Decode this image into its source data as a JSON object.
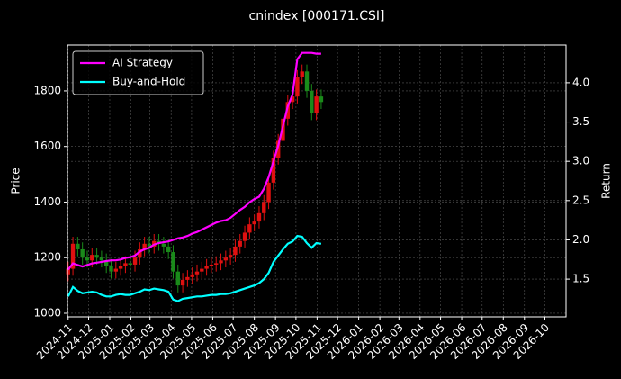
{
  "chart_data": {
    "type": "candlestick",
    "title": "cnindex [000171.CSI]",
    "ylabel": "Price",
    "y2label": "Return",
    "x": [
      "2024-11-01",
      "2024-11-08",
      "2024-11-15",
      "2024-11-22",
      "2024-11-29",
      "2024-12-06",
      "2024-12-13",
      "2024-12-20",
      "2024-12-27",
      "2025-01-03",
      "2025-01-10",
      "2025-01-17",
      "2025-01-24",
      "2025-01-31",
      "2025-02-07",
      "2025-02-14",
      "2025-02-21",
      "2025-02-28",
      "2025-03-07",
      "2025-03-14",
      "2025-03-21",
      "2025-03-28",
      "2025-04-04",
      "2025-04-11",
      "2025-04-18",
      "2025-04-25",
      "2025-05-02",
      "2025-05-09",
      "2025-05-16",
      "2025-05-23",
      "2025-05-30",
      "2025-06-06",
      "2025-06-13",
      "2025-06-20",
      "2025-06-27",
      "2025-07-04",
      "2025-07-11",
      "2025-07-18",
      "2025-07-25",
      "2025-08-01",
      "2025-08-08",
      "2025-08-15",
      "2025-08-22",
      "2025-08-29",
      "2025-09-05",
      "2025-09-12",
      "2025-09-19",
      "2025-09-26",
      "2025-10-03",
      "2025-10-10",
      "2025-10-17",
      "2025-10-24",
      "2025-10-31",
      "2025-11-07"
    ],
    "open": [
      1140,
      1160,
      1250,
      1230,
      1200,
      1190,
      1210,
      1200,
      1190,
      1170,
      1150,
      1160,
      1170,
      1180,
      1175,
      1200,
      1230,
      1250,
      1240,
      1260,
      1250,
      1240,
      1220,
      1150,
      1100,
      1120,
      1130,
      1140,
      1150,
      1160,
      1170,
      1175,
      1180,
      1190,
      1200,
      1210,
      1240,
      1260,
      1290,
      1320,
      1330,
      1360,
      1400,
      1470,
      1560,
      1620,
      1700,
      1760,
      1780,
      1850,
      1870,
      1800,
      1720,
      1780
    ],
    "high": [
      1185,
      1275,
      1275,
      1255,
      1225,
      1235,
      1235,
      1225,
      1215,
      1195,
      1185,
      1195,
      1205,
      1205,
      1225,
      1255,
      1275,
      1275,
      1285,
      1285,
      1275,
      1265,
      1245,
      1175,
      1145,
      1155,
      1165,
      1175,
      1185,
      1195,
      1200,
      1205,
      1215,
      1225,
      1235,
      1265,
      1285,
      1315,
      1345,
      1355,
      1385,
      1425,
      1495,
      1585,
      1645,
      1725,
      1785,
      1805,
      1875,
      1895,
      1895,
      1825,
      1805,
      1805
    ],
    "low": [
      1115,
      1135,
      1205,
      1175,
      1165,
      1165,
      1175,
      1165,
      1145,
      1125,
      1125,
      1135,
      1145,
      1150,
      1150,
      1175,
      1205,
      1215,
      1215,
      1225,
      1215,
      1195,
      1125,
      1075,
      1075,
      1095,
      1105,
      1115,
      1125,
      1135,
      1145,
      1150,
      1155,
      1165,
      1175,
      1185,
      1215,
      1235,
      1265,
      1295,
      1305,
      1335,
      1375,
      1445,
      1535,
      1595,
      1675,
      1735,
      1755,
      1825,
      1775,
      1695,
      1695,
      1735
    ],
    "close": [
      1160,
      1250,
      1230,
      1200,
      1190,
      1210,
      1200,
      1190,
      1170,
      1150,
      1160,
      1170,
      1180,
      1175,
      1200,
      1230,
      1250,
      1240,
      1260,
      1250,
      1240,
      1220,
      1150,
      1100,
      1120,
      1130,
      1140,
      1150,
      1160,
      1170,
      1175,
      1180,
      1190,
      1200,
      1210,
      1240,
      1260,
      1290,
      1320,
      1330,
      1360,
      1400,
      1470,
      1560,
      1620,
      1700,
      1760,
      1780,
      1850,
      1870,
      1800,
      1720,
      1780,
      1760
    ],
    "up_color": "#e01010",
    "down_color": "#1a8a1a",
    "series": [
      {
        "name": "AI Strategy",
        "color": "#ff00ff",
        "axis": "y2",
        "values": [
          1.62,
          1.7,
          1.68,
          1.66,
          1.68,
          1.7,
          1.71,
          1.72,
          1.73,
          1.74,
          1.74,
          1.75,
          1.77,
          1.78,
          1.8,
          1.85,
          1.88,
          1.9,
          1.94,
          1.96,
          1.97,
          1.98,
          2.0,
          2.02,
          2.03,
          2.05,
          2.08,
          2.1,
          2.13,
          2.16,
          2.19,
          2.22,
          2.24,
          2.25,
          2.28,
          2.33,
          2.38,
          2.42,
          2.48,
          2.52,
          2.55,
          2.65,
          2.8,
          3.0,
          3.2,
          3.45,
          3.7,
          3.85,
          4.3,
          4.38,
          4.38,
          4.38,
          4.37,
          4.37
        ]
      },
      {
        "name": "Buy-and-Hold",
        "color": "#00ffff",
        "axis": "y2",
        "values": [
          1.28,
          1.4,
          1.35,
          1.32,
          1.33,
          1.34,
          1.33,
          1.3,
          1.28,
          1.28,
          1.3,
          1.31,
          1.3,
          1.3,
          1.32,
          1.34,
          1.37,
          1.36,
          1.38,
          1.37,
          1.36,
          1.34,
          1.24,
          1.22,
          1.25,
          1.26,
          1.27,
          1.28,
          1.28,
          1.29,
          1.3,
          1.3,
          1.31,
          1.31,
          1.32,
          1.34,
          1.36,
          1.38,
          1.4,
          1.42,
          1.45,
          1.5,
          1.58,
          1.72,
          1.8,
          1.88,
          1.95,
          1.98,
          2.05,
          2.04,
          1.96,
          1.9,
          1.96,
          1.95
        ]
      }
    ],
    "xlim": [
      "2024-10-31",
      "2026-11-01"
    ],
    "xticks": [
      "2024-11",
      "2024-12",
      "2025-01",
      "2025-02",
      "2025-03",
      "2025-04",
      "2025-05",
      "2025-06",
      "2025-07",
      "2025-08",
      "2025-09",
      "2025-10",
      "2025-11",
      "2025-12",
      "2026-01",
      "2026-02",
      "2026-03",
      "2026-04",
      "2026-05",
      "2026-06",
      "2026-07",
      "2026-08",
      "2026-09",
      "2026-10"
    ],
    "ylim": [
      987,
      1965
    ],
    "yticks": [
      1000,
      1200,
      1400,
      1600,
      1800
    ],
    "y2lim": [
      1.02,
      4.48
    ],
    "y2ticks": [
      1.5,
      {
        "value": 2,
        "label": "2.0"
      },
      2.5,
      {
        "value": 3,
        "label": "3.0"
      },
      3.5,
      {
        "value": 4,
        "label": "4.0"
      }
    ],
    "grid": true,
    "legend": "upper left"
  }
}
